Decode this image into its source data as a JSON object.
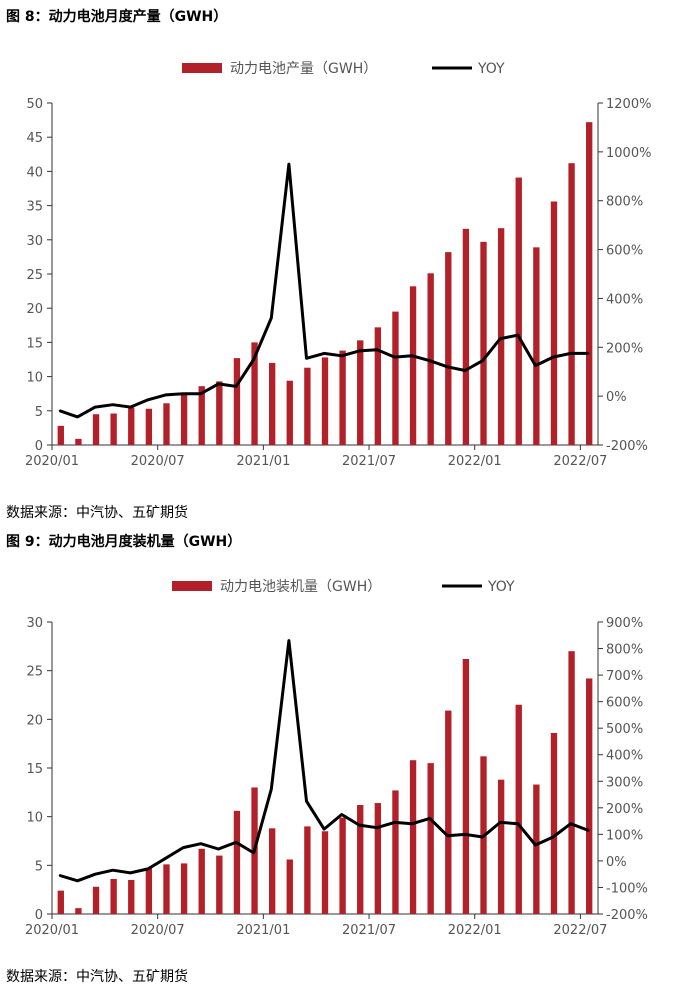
{
  "figures": [
    {
      "title": "图 8：动力电池月度产量（GWH）",
      "source": "数据来源：中汽协、五矿期货"
    },
    {
      "title": "图 9：动力电池月度装机量（GWH）",
      "source": "数据来源：中汽协、五矿期货"
    }
  ],
  "colors": {
    "bar": "#B2202A",
    "line": "#000000",
    "axis": "#333333",
    "tick_text": "#555555"
  },
  "chart_data": [
    {
      "type": "bar",
      "title": "图 8：动力电池月度产量（GWH）",
      "categories": [
        "2020/01",
        "2020/02",
        "2020/03",
        "2020/04",
        "2020/05",
        "2020/06",
        "2020/07",
        "2020/08",
        "2020/09",
        "2020/10",
        "2020/11",
        "2020/12",
        "2021/01",
        "2021/02",
        "2021/03",
        "2021/04",
        "2021/05",
        "2021/06",
        "2021/07",
        "2021/08",
        "2021/09",
        "2021/10",
        "2021/11",
        "2021/12",
        "2022/01",
        "2022/02",
        "2022/03",
        "2022/04",
        "2022/05",
        "2022/06",
        "2022/07"
      ],
      "x_tick_labels": [
        "2020/01",
        "2020/07",
        "2021/01",
        "2021/07",
        "2022/01",
        "2022/07"
      ],
      "series": [
        {
          "name": "动力电池产量（GWH）",
          "type": "bar",
          "axis": "left",
          "values": [
            2.8,
            0.9,
            4.5,
            4.6,
            5.5,
            5.3,
            6.1,
            7.5,
            8.6,
            9.3,
            12.7,
            15.0,
            12.0,
            9.4,
            11.3,
            12.8,
            13.8,
            15.3,
            17.2,
            19.5,
            23.2,
            25.1,
            28.2,
            31.6,
            29.7,
            31.7,
            39.1,
            28.9,
            35.6,
            41.2,
            47.2
          ]
        },
        {
          "name": "YOY",
          "type": "line",
          "axis": "right",
          "values": [
            -60,
            -85,
            -45,
            -35,
            -45,
            -15,
            5,
            10,
            10,
            50,
            40,
            150,
            320,
            950,
            155,
            175,
            165,
            185,
            190,
            160,
            165,
            145,
            120,
            105,
            145,
            235,
            250,
            125,
            160,
            175,
            175
          ]
        }
      ],
      "ylim_left": [
        0,
        50
      ],
      "yticks_left": [
        "0",
        "5",
        "10",
        "15",
        "20",
        "25",
        "30",
        "35",
        "40",
        "45",
        "50"
      ],
      "ylim_right": [
        -200,
        1200
      ],
      "yticks_right": [
        "-200%",
        "0%",
        "200%",
        "400%",
        "600%",
        "800%",
        "1000%",
        "1200%"
      ],
      "legend_position": "top"
    },
    {
      "type": "bar",
      "title": "图 9：动力电池月度装机量（GWH）",
      "categories": [
        "2020/01",
        "2020/02",
        "2020/03",
        "2020/04",
        "2020/05",
        "2020/06",
        "2020/07",
        "2020/08",
        "2020/09",
        "2020/10",
        "2020/11",
        "2020/12",
        "2021/01",
        "2021/02",
        "2021/03",
        "2021/04",
        "2021/05",
        "2021/06",
        "2021/07",
        "2021/08",
        "2021/09",
        "2021/10",
        "2021/11",
        "2021/12",
        "2022/01",
        "2022/02",
        "2022/03",
        "2022/04",
        "2022/05",
        "2022/06",
        "2022/07"
      ],
      "x_tick_labels": [
        "2020/01",
        "2020/07",
        "2021/01",
        "2021/07",
        "2022/01",
        "2022/07"
      ],
      "series": [
        {
          "name": "动力电池装机量（GWH）",
          "type": "bar",
          "axis": "left",
          "values": [
            2.4,
            0.6,
            2.8,
            3.6,
            3.5,
            4.7,
            5.1,
            5.2,
            6.7,
            6.0,
            10.6,
            13.0,
            8.8,
            5.6,
            9.0,
            8.5,
            9.9,
            11.2,
            11.4,
            12.7,
            15.8,
            15.5,
            20.9,
            26.2,
            16.2,
            13.8,
            21.5,
            13.3,
            18.6,
            27.0,
            24.2
          ]
        },
        {
          "name": "YOY",
          "type": "line",
          "axis": "right",
          "values": [
            -55,
            -75,
            -50,
            -35,
            -45,
            -30,
            10,
            50,
            65,
            45,
            70,
            30,
            270,
            830,
            225,
            120,
            175,
            135,
            125,
            145,
            140,
            160,
            95,
            100,
            90,
            145,
            140,
            60,
            90,
            140,
            115
          ]
        }
      ],
      "ylim_left": [
        0,
        30
      ],
      "yticks_left": [
        "0",
        "5",
        "10",
        "15",
        "20",
        "25",
        "30"
      ],
      "ylim_right": [
        -200,
        900
      ],
      "yticks_right": [
        "-200%",
        "-100%",
        "0%",
        "100%",
        "200%",
        "300%",
        "400%",
        "500%",
        "600%",
        "700%",
        "800%",
        "900%"
      ],
      "legend_position": "top"
    }
  ]
}
